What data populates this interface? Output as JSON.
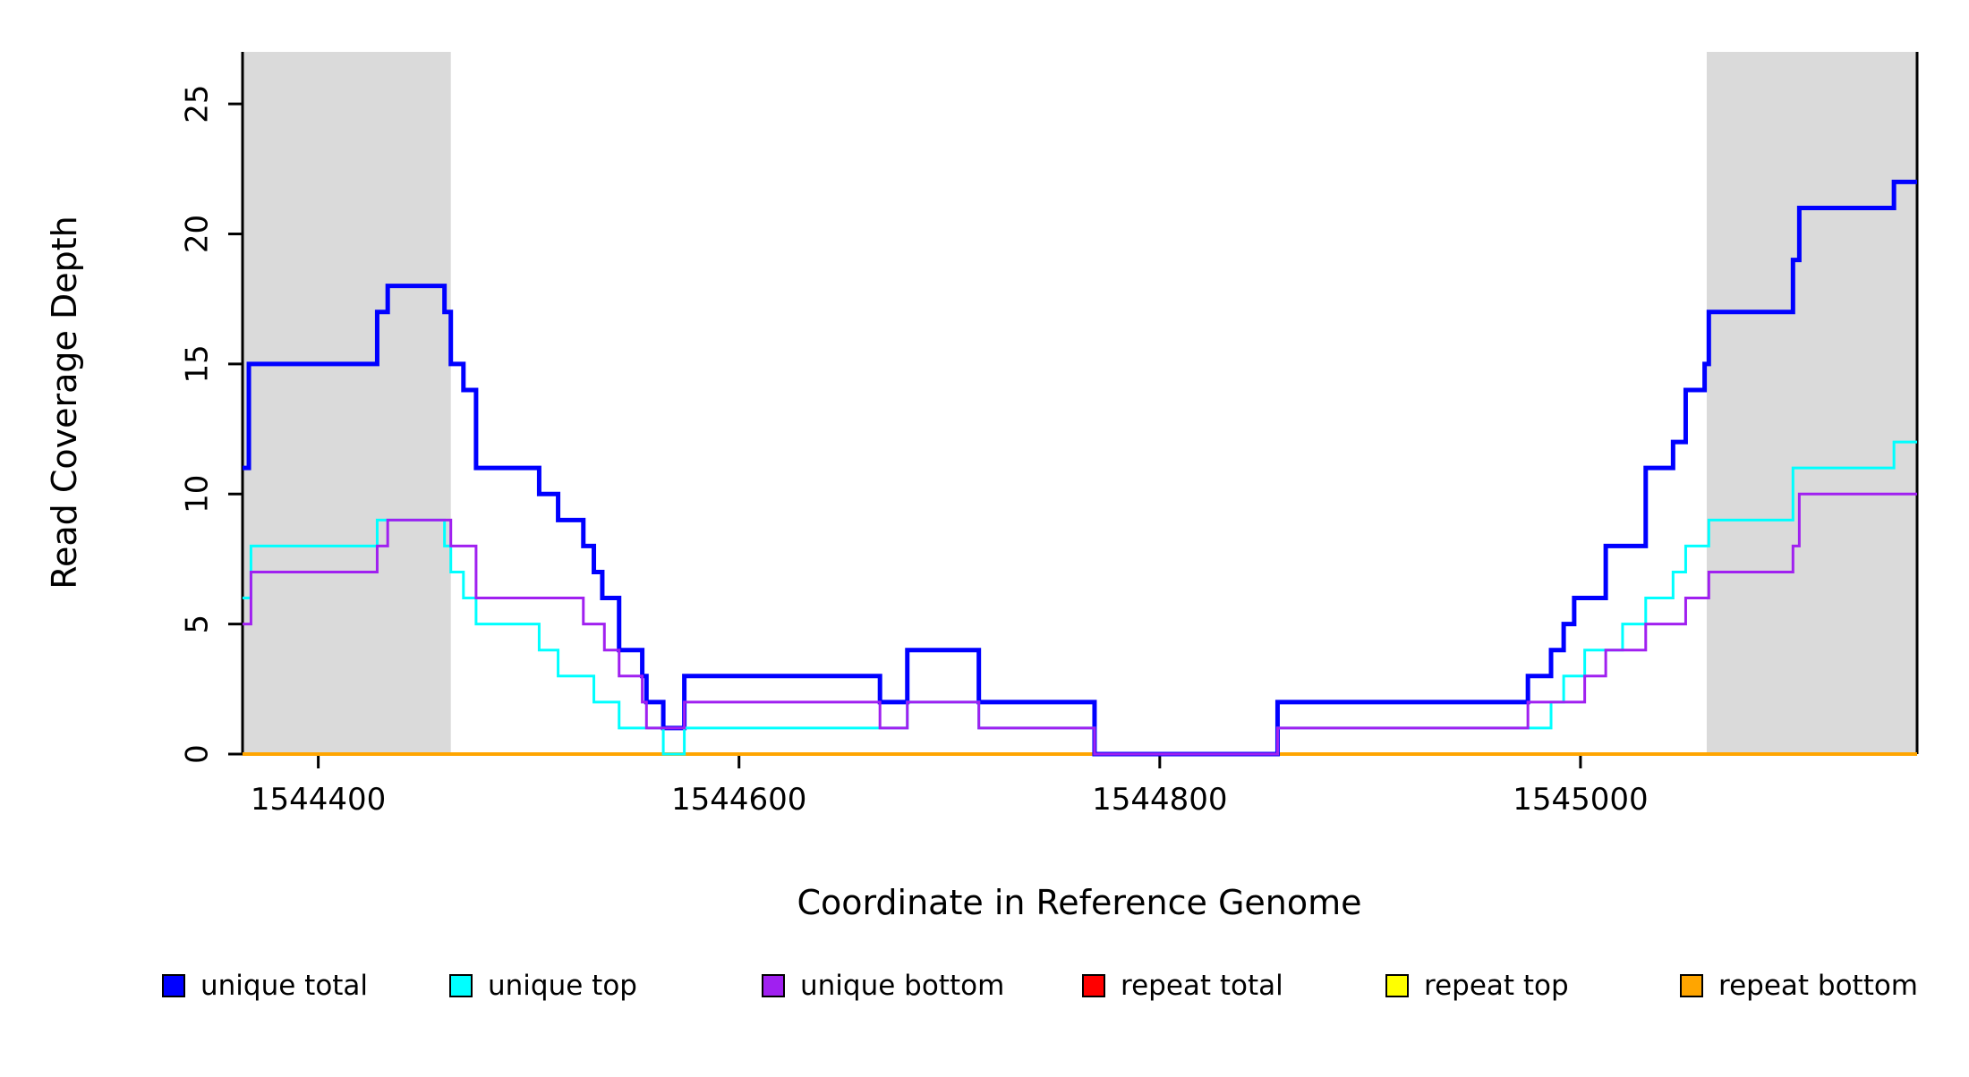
{
  "figure": {
    "background": "#FFFFFF",
    "plot_border_color": "#000000"
  },
  "chart_data": {
    "type": "line",
    "subtype": "step-coverage-plot",
    "title": "",
    "xlabel": "Coordinate in Reference Genome",
    "ylabel": "Read Coverage Depth",
    "xlim": [
      1544364,
      1545160
    ],
    "ylim": [
      0,
      27
    ],
    "x_ticks": [
      1544400,
      1544600,
      1544800,
      1545000
    ],
    "y_ticks": [
      0,
      5,
      10,
      15,
      20,
      25
    ],
    "grid": false,
    "legend_position": "bottom",
    "shaded_regions": [
      {
        "name": "repeat-region-left",
        "x0": 1544364,
        "x1": 1544463,
        "color": "#DADADA"
      },
      {
        "name": "repeat-region-right",
        "x0": 1545060,
        "x1": 1545160,
        "color": "#DADADA"
      }
    ],
    "series": [
      {
        "name": "unique total",
        "color": "#0000FF",
        "stroke_width": 5,
        "points": [
          [
            1544364,
            11
          ],
          [
            1544367,
            15
          ],
          [
            1544428,
            17
          ],
          [
            1544433,
            18
          ],
          [
            1544460,
            17
          ],
          [
            1544463,
            15
          ],
          [
            1544469,
            14
          ],
          [
            1544475,
            11
          ],
          [
            1544505,
            10
          ],
          [
            1544514,
            9
          ],
          [
            1544526,
            8
          ],
          [
            1544531,
            7
          ],
          [
            1544535,
            6
          ],
          [
            1544543,
            4
          ],
          [
            1544554,
            3
          ],
          [
            1544556,
            2
          ],
          [
            1544564,
            1
          ],
          [
            1544574,
            3
          ],
          [
            1544667,
            2
          ],
          [
            1544680,
            4
          ],
          [
            1544714,
            2
          ],
          [
            1544769,
            0
          ],
          [
            1544856,
            2
          ],
          [
            1544975,
            3
          ],
          [
            1544986,
            4
          ],
          [
            1544992,
            5
          ],
          [
            1544997,
            6
          ],
          [
            1545012,
            8
          ],
          [
            1545031,
            11
          ],
          [
            1545044,
            12
          ],
          [
            1545050,
            14
          ],
          [
            1545059,
            15
          ],
          [
            1545061,
            17
          ],
          [
            1545101,
            19
          ],
          [
            1545104,
            21
          ],
          [
            1545149,
            22
          ],
          [
            1545160,
            22
          ]
        ]
      },
      {
        "name": "unique top",
        "color": "#00FFFF",
        "stroke_width": 3,
        "points": [
          [
            1544364,
            6
          ],
          [
            1544368,
            8
          ],
          [
            1544428,
            9
          ],
          [
            1544460,
            8
          ],
          [
            1544463,
            7
          ],
          [
            1544469,
            6
          ],
          [
            1544475,
            5
          ],
          [
            1544505,
            4
          ],
          [
            1544514,
            3
          ],
          [
            1544531,
            2
          ],
          [
            1544543,
            1
          ],
          [
            1544564,
            0
          ],
          [
            1544574,
            1
          ],
          [
            1544680,
            2
          ],
          [
            1544714,
            1
          ],
          [
            1544769,
            0
          ],
          [
            1544856,
            1
          ],
          [
            1544986,
            2
          ],
          [
            1544992,
            3
          ],
          [
            1545002,
            4
          ],
          [
            1545020,
            5
          ],
          [
            1545031,
            6
          ],
          [
            1545044,
            7
          ],
          [
            1545050,
            8
          ],
          [
            1545061,
            9
          ],
          [
            1545101,
            11
          ],
          [
            1545149,
            12
          ],
          [
            1545160,
            12
          ]
        ]
      },
      {
        "name": "unique bottom",
        "color": "#A020F0",
        "stroke_width": 3,
        "points": [
          [
            1544364,
            5
          ],
          [
            1544368,
            7
          ],
          [
            1544428,
            8
          ],
          [
            1544433,
            9
          ],
          [
            1544463,
            8
          ],
          [
            1544475,
            6
          ],
          [
            1544526,
            5
          ],
          [
            1544536,
            4
          ],
          [
            1544543,
            3
          ],
          [
            1544554,
            2
          ],
          [
            1544556,
            1
          ],
          [
            1544574,
            2
          ],
          [
            1544667,
            1
          ],
          [
            1544680,
            2
          ],
          [
            1544714,
            1
          ],
          [
            1544769,
            0
          ],
          [
            1544856,
            1
          ],
          [
            1544975,
            2
          ],
          [
            1545002,
            3
          ],
          [
            1545012,
            4
          ],
          [
            1545031,
            5
          ],
          [
            1545050,
            6
          ],
          [
            1545061,
            7
          ],
          [
            1545101,
            8
          ],
          [
            1545104,
            10
          ],
          [
            1545160,
            10
          ]
        ]
      },
      {
        "name": "repeat total",
        "color": "#FF0000",
        "stroke_width": 3,
        "points": [
          [
            1544364,
            0
          ],
          [
            1545160,
            0
          ]
        ]
      },
      {
        "name": "repeat top",
        "color": "#FFFF00",
        "stroke_width": 3,
        "points": [
          [
            1544364,
            0
          ],
          [
            1545160,
            0
          ]
        ]
      },
      {
        "name": "repeat bottom",
        "color": "#FFA500",
        "stroke_width": 4,
        "points": [
          [
            1544364,
            0
          ],
          [
            1545160,
            0
          ]
        ]
      }
    ],
    "draw_order": [
      "repeat total",
      "repeat top",
      "repeat bottom",
      "unique total",
      "unique top",
      "unique bottom"
    ]
  },
  "legend": {
    "items": [
      {
        "label": "unique total",
        "color": "#0000FF"
      },
      {
        "label": "unique top",
        "color": "#00FFFF"
      },
      {
        "label": "unique bottom",
        "color": "#A020F0"
      },
      {
        "label": "repeat total",
        "color": "#FF0000"
      },
      {
        "label": "repeat top",
        "color": "#FFFF00"
      },
      {
        "label": "repeat bottom",
        "color": "#FFA500"
      }
    ]
  }
}
